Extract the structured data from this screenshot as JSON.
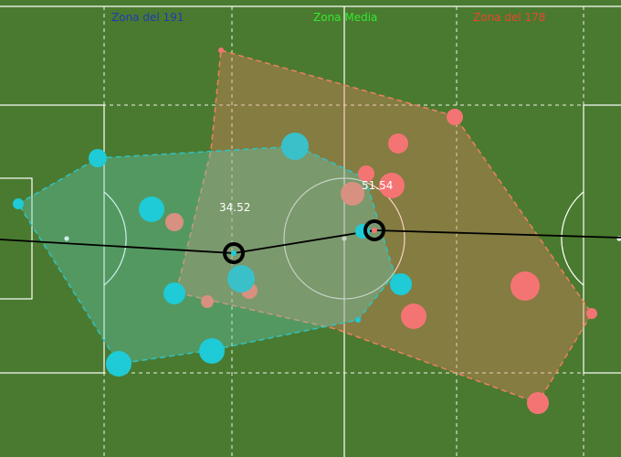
{
  "zones": {
    "left": {
      "label": "Zona del 191",
      "color": "#1f3bb3"
    },
    "middle": {
      "label": "Zona Media",
      "color": "#33e833"
    },
    "right": {
      "label": "Zona del 178",
      "color": "#e8462e"
    }
  },
  "teams": {
    "team_191": {
      "area_label": "34.52",
      "color": "#1ecbd6",
      "hull_color": "#2ec4c4"
    },
    "team_178": {
      "area_label": "51.54",
      "color": "#f47474",
      "hull_color": "#f08060"
    }
  },
  "colors": {
    "pitch": "#4a7a2f",
    "lines": "#ffffff",
    "pass_line": "#000000"
  }
}
